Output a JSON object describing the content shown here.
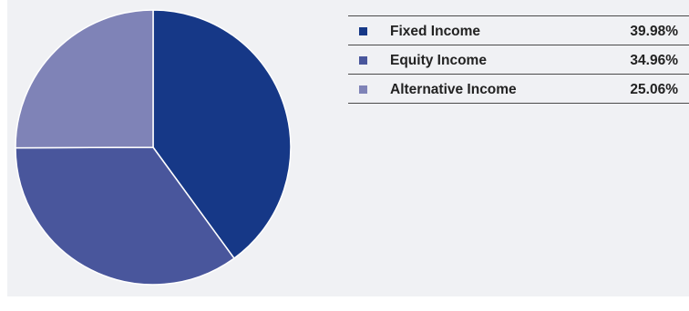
{
  "chart_data": {
    "type": "pie",
    "title": "",
    "legend_position": "right",
    "slices": [
      {
        "name": "Fixed Income",
        "value": 39.98,
        "label": "39.98%",
        "color": "#163887"
      },
      {
        "name": "Equity Income",
        "value": 34.96,
        "label": "34.96%",
        "color": "#49569c"
      },
      {
        "name": "Alternative Income",
        "value": 25.06,
        "label": "25.06%",
        "color": "#7f83b7"
      }
    ]
  },
  "colors": {
    "panel_background": "#f0f1f4",
    "slice_border": "#ffffff",
    "legend_rule": "#4a4a4a",
    "text": "#222222"
  }
}
